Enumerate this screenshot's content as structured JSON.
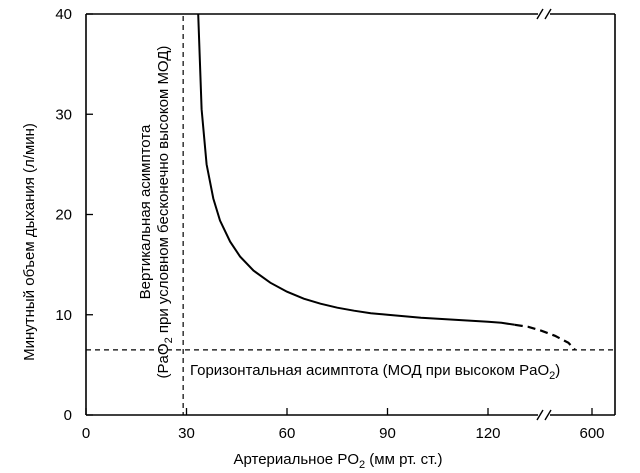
{
  "chart_data": {
    "type": "line",
    "title": "",
    "xlabel": "Артериальное PO",
    "xlabel_sub": "2",
    "xlabel_unit": " (мм рт. ст.)",
    "ylabel": "Минутный объем дыхания  (л/мин)",
    "x_ticks": [
      "0",
      "30",
      "60",
      "90",
      "120",
      "600"
    ],
    "y_ticks": [
      "0",
      "10",
      "20",
      "30",
      "40"
    ],
    "xlim": [
      0,
      150
    ],
    "ylim": [
      0,
      40
    ],
    "x_axis_break": true,
    "grid": false,
    "series": [
      {
        "style": "solid",
        "x": [
          33.5,
          34.5,
          36,
          38,
          40,
          43,
          46,
          50,
          55,
          60,
          65,
          70,
          75,
          80,
          85,
          90,
          95,
          100,
          105,
          110,
          115,
          120,
          124,
          128
        ],
        "y": [
          40,
          30.5,
          25,
          21.6,
          19.4,
          17.3,
          15.8,
          14.4,
          13.2,
          12.3,
          11.6,
          11.1,
          10.7,
          10.4,
          10.15,
          10.0,
          9.85,
          9.7,
          9.6,
          9.5,
          9.4,
          9.3,
          9.2,
          9.0
        ]
      },
      {
        "style": "dashed",
        "x": [
          128,
          132,
          136,
          140,
          144,
          146.5
        ],
        "y": [
          9.0,
          8.8,
          8.4,
          7.9,
          7.2,
          6.5
        ]
      }
    ],
    "asymptotes": {
      "vertical": {
        "x": 29,
        "label_line1": "Вертикальная асимптота",
        "label_line2_a": "(PaO",
        "label_line2_sub": "2",
        "label_line2_b": " при условном бесконечно высоком МОД)"
      },
      "horizontal": {
        "y": 6.5,
        "label_a": "Горизонтальная асимптота (МОД при высоком PaO",
        "label_sub": "2",
        "label_b": ")"
      }
    }
  }
}
